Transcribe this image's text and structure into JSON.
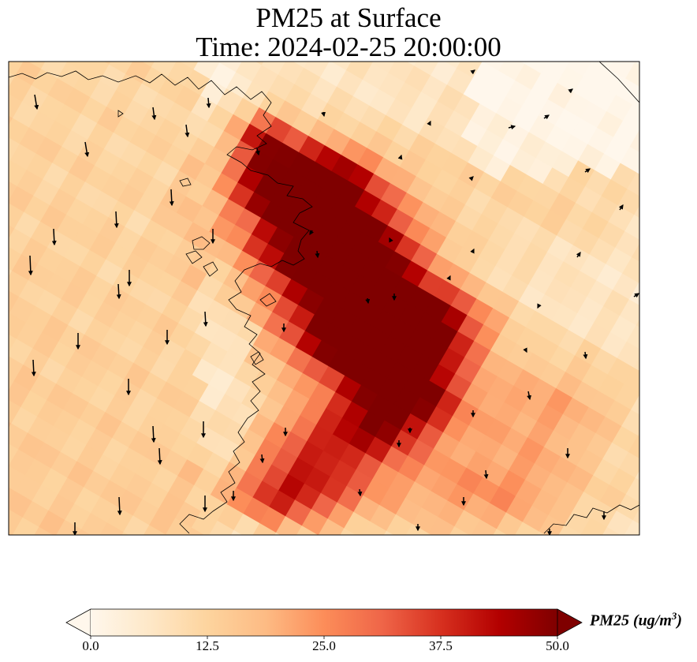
{
  "title_line1": "PM25 at Surface",
  "title_line2": "Time: 2024-02-25 20:00:00",
  "colorbar": {
    "label_main": "PM25 (ug/m",
    "label_exp": "3",
    "label_close": ")",
    "ticks": [
      "0.0",
      "12.5",
      "25.0",
      "37.5",
      "50.0"
    ],
    "min": 0,
    "max": 50,
    "colormap": "OrRd",
    "colors": [
      "#fff7ec",
      "#fee8c8",
      "#fdd49e",
      "#fdbb84",
      "#fc8d59",
      "#ef6548",
      "#d7301f",
      "#b30000",
      "#7f0000"
    ],
    "extend": "both"
  },
  "map": {
    "type": "heatmap",
    "variable": "PM25",
    "units": "ug/m3",
    "level": "Surface",
    "overlays": [
      "coastlines",
      "wind-vectors"
    ],
    "plume_max_value": 50
  }
}
